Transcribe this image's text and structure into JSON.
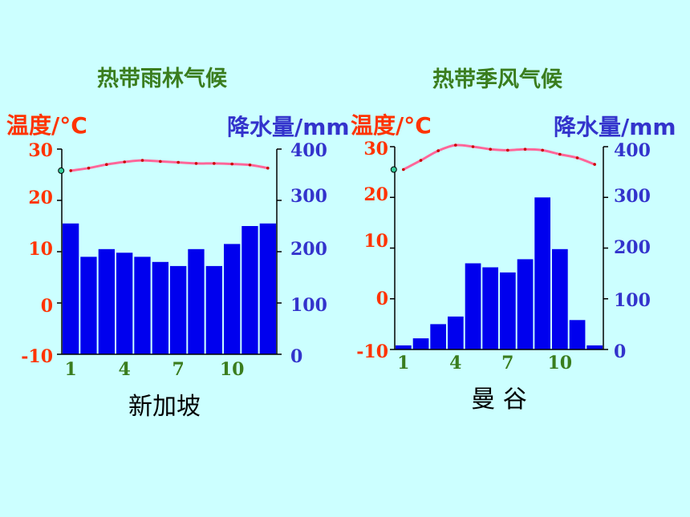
{
  "chart_data": [
    {
      "type": "bar+line",
      "title": "热带雨林气候",
      "city": "新加坡",
      "ylabel_left": "温度/°C",
      "ylabel_right": "降水量/mm",
      "ylim_left": [
        -10,
        30
      ],
      "ylim_right": [
        0,
        400
      ],
      "yticks_left": [
        "30",
        "20",
        "10",
        "0",
        "-10"
      ],
      "yticks_right": [
        "400",
        "300",
        "200",
        "100",
        "0"
      ],
      "xticks": [
        "1",
        "4",
        "7",
        "10"
      ],
      "months": [
        1,
        2,
        3,
        4,
        5,
        6,
        7,
        8,
        9,
        10,
        11,
        12
      ],
      "precipitation": [
        255,
        190,
        205,
        198,
        190,
        180,
        172,
        205,
        172,
        215,
        250,
        255
      ],
      "temperature": [
        25.8,
        26.3,
        27.0,
        27.5,
        27.8,
        27.6,
        27.4,
        27.2,
        27.2,
        27.1,
        26.9,
        26.3
      ],
      "bar_color": "#0000ee",
      "line_color": "#ff6699"
    },
    {
      "type": "bar+line",
      "title": "热带季风气候",
      "city": "曼 谷",
      "ylabel_left": "温度/°C",
      "ylabel_right": "降水量/mm",
      "ylim_left": [
        -10,
        30
      ],
      "ylim_right": [
        0,
        400
      ],
      "yticks_left": [
        "30",
        "20",
        "10",
        "0",
        "-10"
      ],
      "yticks_right": [
        "400",
        "300",
        "200",
        "100",
        "0"
      ],
      "xticks": [
        "1",
        "4",
        "7",
        "10"
      ],
      "months": [
        1,
        2,
        3,
        4,
        5,
        6,
        7,
        8,
        9,
        10,
        11,
        12
      ],
      "precipitation": [
        8,
        22,
        50,
        65,
        170,
        162,
        152,
        178,
        300,
        198,
        58,
        8
      ],
      "temperature": [
        25.5,
        27.3,
        29.2,
        30.3,
        30.0,
        29.5,
        29.3,
        29.5,
        29.3,
        28.5,
        27.8,
        26.5
      ],
      "bar_color": "#0000ee",
      "line_color": "#ff6699"
    }
  ]
}
